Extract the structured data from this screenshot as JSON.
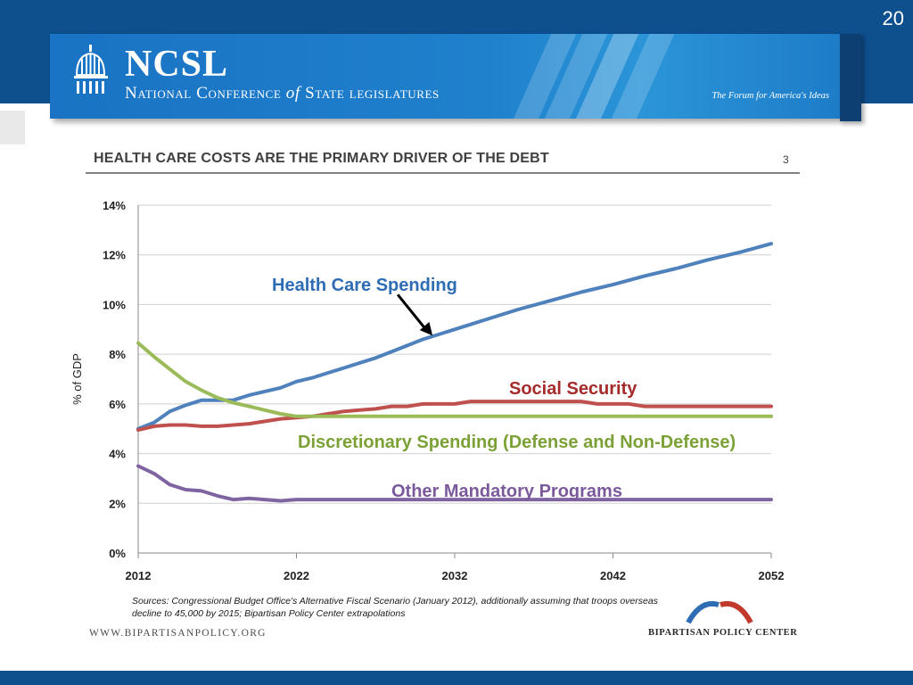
{
  "slide_number": "20",
  "header": {
    "org_short": "NCSL",
    "org_full_prefix": "National Conference",
    "org_full_of": "of",
    "org_full_suffix": "State legislatures",
    "tagline": "The Forum for America's Ideas"
  },
  "chart_heading": "HEALTH CARE COSTS ARE THE PRIMARY DRIVER OF THE DEBT",
  "page_ref": "3",
  "sources": "Sources: Congressional Budget Office's Alternative Fiscal Scenario (January 2012), additionally assuming that troops overseas decline to 45,000 by 2015; Bipartisan Policy Center extrapolations",
  "footer": {
    "website": "WWW.BIPARTISANPOLICY.ORG",
    "bpc_name": "BIPARTISAN POLICY CENTER"
  },
  "colors": {
    "band": "#0e4f8e",
    "health": "#4f81bd",
    "social": "#c0504d",
    "discretionary": "#9bbb59",
    "other": "#8064a2"
  },
  "chart_data": {
    "type": "line",
    "ylabel": "% of GDP",
    "xlabel": "",
    "xlim": [
      2012,
      2052
    ],
    "ylim": [
      0,
      14
    ],
    "x_ticks": [
      "2012",
      "2022",
      "2032",
      "2042",
      "2052"
    ],
    "y_ticks": [
      "0%",
      "2%",
      "4%",
      "6%",
      "8%",
      "10%",
      "12%",
      "14%"
    ],
    "grid": "horizontal",
    "series": [
      {
        "name": "Health Care Spending",
        "color": "#4f81bd",
        "points": [
          [
            2012,
            5.0
          ],
          [
            2013,
            5.25
          ],
          [
            2014,
            5.7
          ],
          [
            2015,
            5.95
          ],
          [
            2016,
            6.15
          ],
          [
            2017,
            6.15
          ],
          [
            2018,
            6.15
          ],
          [
            2019,
            6.35
          ],
          [
            2020,
            6.5
          ],
          [
            2021,
            6.65
          ],
          [
            2022,
            6.9
          ],
          [
            2023,
            7.05
          ],
          [
            2024,
            7.25
          ],
          [
            2025,
            7.45
          ],
          [
            2026,
            7.65
          ],
          [
            2027,
            7.85
          ],
          [
            2028,
            8.1
          ],
          [
            2029,
            8.35
          ],
          [
            2030,
            8.6
          ],
          [
            2031,
            8.8
          ],
          [
            2032,
            9.0
          ],
          [
            2034,
            9.4
          ],
          [
            2036,
            9.8
          ],
          [
            2038,
            10.15
          ],
          [
            2040,
            10.5
          ],
          [
            2042,
            10.8
          ],
          [
            2044,
            11.15
          ],
          [
            2046,
            11.45
          ],
          [
            2048,
            11.8
          ],
          [
            2050,
            12.1
          ],
          [
            2052,
            12.45
          ]
        ]
      },
      {
        "name": "Social Security",
        "color": "#c0504d",
        "points": [
          [
            2012,
            4.95
          ],
          [
            2013,
            5.1
          ],
          [
            2014,
            5.15
          ],
          [
            2015,
            5.15
          ],
          [
            2016,
            5.1
          ],
          [
            2017,
            5.1
          ],
          [
            2018,
            5.15
          ],
          [
            2019,
            5.2
          ],
          [
            2020,
            5.3
          ],
          [
            2021,
            5.4
          ],
          [
            2022,
            5.45
          ],
          [
            2023,
            5.5
          ],
          [
            2024,
            5.6
          ],
          [
            2025,
            5.7
          ],
          [
            2026,
            5.75
          ],
          [
            2027,
            5.8
          ],
          [
            2028,
            5.9
          ],
          [
            2029,
            5.9
          ],
          [
            2030,
            6.0
          ],
          [
            2032,
            6.0
          ],
          [
            2033,
            6.1
          ],
          [
            2040,
            6.1
          ],
          [
            2041,
            6.0
          ],
          [
            2043,
            6.0
          ],
          [
            2044,
            5.9
          ],
          [
            2052,
            5.9
          ]
        ]
      },
      {
        "name": "Discretionary Spending (Defense and Non-Defense)",
        "color": "#9bbb59",
        "points": [
          [
            2012,
            8.45
          ],
          [
            2013,
            7.9
          ],
          [
            2014,
            7.4
          ],
          [
            2015,
            6.9
          ],
          [
            2016,
            6.55
          ],
          [
            2017,
            6.25
          ],
          [
            2018,
            6.05
          ],
          [
            2019,
            5.9
          ],
          [
            2020,
            5.75
          ],
          [
            2021,
            5.6
          ],
          [
            2022,
            5.5
          ],
          [
            2052,
            5.5
          ]
        ]
      },
      {
        "name": "Other Mandatory Programs",
        "color": "#8064a2",
        "points": [
          [
            2012,
            3.5
          ],
          [
            2013,
            3.2
          ],
          [
            2014,
            2.75
          ],
          [
            2015,
            2.55
          ],
          [
            2016,
            2.5
          ],
          [
            2017,
            2.3
          ],
          [
            2018,
            2.15
          ],
          [
            2019,
            2.2
          ],
          [
            2020,
            2.15
          ],
          [
            2021,
            2.1
          ],
          [
            2022,
            2.15
          ],
          [
            2052,
            2.15
          ]
        ]
      }
    ],
    "annotations": [
      {
        "text": "Health Care Spending",
        "color": "#2e6db4",
        "series": 0
      },
      {
        "text": "Social Security",
        "color": "#a52a2a",
        "series": 1
      },
      {
        "text": "Discretionary Spending (Defense and Non-Defense)",
        "color": "#7ba136",
        "series": 2
      },
      {
        "text": "Other Mandatory Programs",
        "color": "#7a5a9c",
        "series": 3
      }
    ],
    "arrow": {
      "from": [
        2028.4,
        10.4
      ],
      "to": [
        2030.6,
        8.75
      ]
    }
  }
}
